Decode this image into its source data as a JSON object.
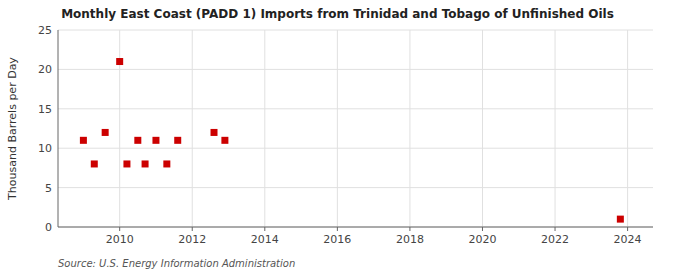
{
  "chart_data": {
    "type": "scatter",
    "title": "Monthly East Coast (PADD 1) Imports from Trinidad and Tobago of Unfinished Oils",
    "y_label": "Thousand Barrels per Day",
    "source": "Source: U.S. Energy Information Administration",
    "x": [
      2009.0,
      2009.3,
      2009.6,
      2010.0,
      2010.2,
      2010.5,
      2010.7,
      2011.0,
      2011.3,
      2011.6,
      2012.6,
      2012.9,
      2023.8
    ],
    "values": [
      11,
      8,
      12,
      21,
      8,
      11,
      8,
      11,
      8,
      11,
      12,
      11,
      1
    ],
    "color": "#cc0000",
    "marker": "square",
    "xlim": [
      2008.3,
      2024.7
    ],
    "ylim": [
      0,
      25
    ],
    "xticks": [
      2010,
      2012,
      2014,
      2016,
      2018,
      2020,
      2022,
      2024
    ],
    "yticks": [
      0,
      5,
      10,
      15,
      20,
      25
    ],
    "grid": true
  }
}
